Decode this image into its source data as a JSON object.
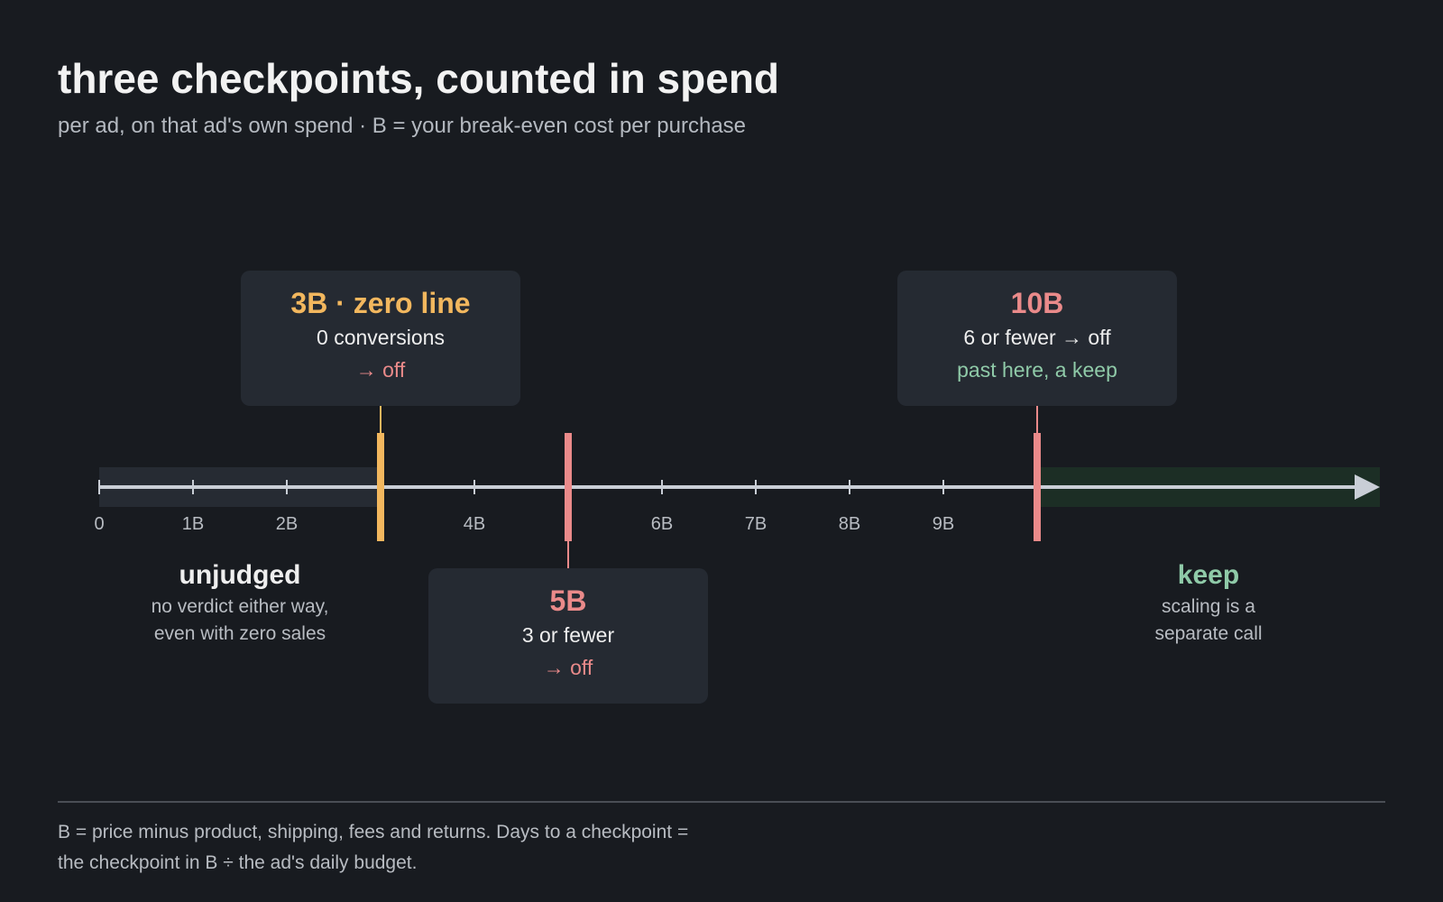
{
  "title": "three checkpoints, counted in spend",
  "subtitle": "per ad, on that ad's own spend · B = your break-even cost per purchase",
  "axis": {
    "ticks": [
      {
        "value": 0,
        "label": "0"
      },
      {
        "value": 1,
        "label": "1B"
      },
      {
        "value": 2,
        "label": "2B"
      },
      {
        "value": 4,
        "label": "4B"
      },
      {
        "value": 6,
        "label": "6B"
      },
      {
        "value": 7,
        "label": "7B"
      },
      {
        "value": 8,
        "label": "8B"
      },
      {
        "value": 9,
        "label": "9B"
      }
    ]
  },
  "checkpoints": [
    {
      "value": 3,
      "title": "3B · zero line",
      "line1": "0 conversions",
      "line2": "→ off",
      "color": "#f2b75e"
    },
    {
      "value": 5,
      "title": "5B",
      "line1": "3 or fewer",
      "line2": "→ off",
      "color": "#ea8a8a"
    },
    {
      "value": 10,
      "title": "10B",
      "line1": "6 or fewer → off",
      "line2": "past here, a keep",
      "color": "#ea8a8a"
    }
  ],
  "zones": {
    "unjudged": {
      "title": "unjudged",
      "line1": "no verdict either way,",
      "line2": "even with zero sales"
    },
    "keep": {
      "title": "keep",
      "line1": "scaling is a",
      "line2": "separate call"
    }
  },
  "footer": {
    "line1": "B = price minus product, shipping, fees and returns. Days to a checkpoint =",
    "line2": "the checkpoint in B ÷ the ad's daily budget."
  },
  "colors": {
    "background": "#181b20",
    "card": "#252a32",
    "axis": "#c9ced6",
    "zero_line": "#f2b75e",
    "cut": "#ea8a8a",
    "keep": "#8fcaa8",
    "unjudged_band": "#262b33",
    "keep_band": "#1c2e25"
  }
}
